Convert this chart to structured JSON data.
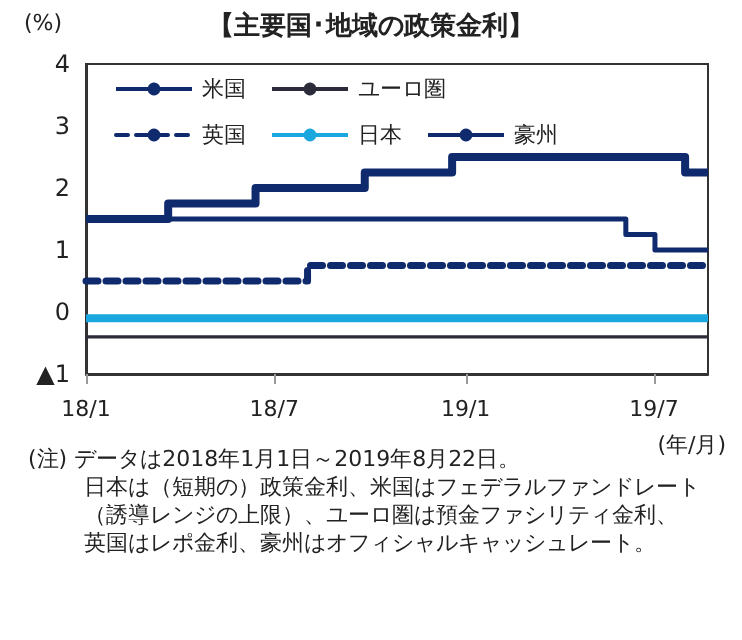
{
  "chart_data": {
    "type": "step",
    "title": "【主要国･地域の政策金利】",
    "ylabel": "(%)",
    "xlabel": "(年/月)",
    "xlim": [
      "2018-01-01",
      "2019-08-22"
    ],
    "xticks": [
      {
        "value": "2018-01-01",
        "label": "18/1"
      },
      {
        "value": "2018-07-01",
        "label": "18/7"
      },
      {
        "value": "2019-01-01",
        "label": "19/1"
      },
      {
        "value": "2019-07-01",
        "label": "19/7"
      }
    ],
    "ylim": [
      -1,
      4
    ],
    "yticks": [
      {
        "value": -1,
        "label": "▲1"
      },
      0,
      1,
      2,
      3,
      4
    ],
    "grid": false,
    "legend": "top left",
    "marker": "none",
    "series": [
      {
        "name": "米国",
        "color": "#102a6e",
        "x": [
          "2018-01-01",
          "2018-03-21",
          "2018-06-13",
          "2018-09-26",
          "2018-12-19",
          "2019-07-31",
          "2019-08-22"
        ],
        "values": [
          1.5,
          1.75,
          2,
          2.25,
          2.5,
          2.25,
          2.25
        ]
      },
      {
        "name": "ユーロ圏",
        "color": "#2b2b3a",
        "x": [
          "2018-01-01",
          "2019-08-22"
        ],
        "values": [
          -0.4,
          -0.4
        ]
      },
      {
        "name": "英国",
        "color": "#102a6e",
        "line_style": "dashed",
        "x": [
          "2018-01-01",
          "2018-08-02",
          "2019-08-22"
        ],
        "values": [
          0.5,
          0.75,
          0.75
        ]
      },
      {
        "name": "日本",
        "color": "#1aa7e0",
        "x": [
          "2018-01-01",
          "2019-08-22"
        ],
        "values": [
          -0.1,
          -0.1
        ]
      },
      {
        "name": "豪州",
        "color": "#102a6e",
        "x": [
          "2018-01-01",
          "2019-06-04",
          "2019-07-02",
          "2019-08-22"
        ],
        "values": [
          1.5,
          1.25,
          1,
          1
        ]
      }
    ],
    "annotations": [
      "(注) データは2018年1月1日～2019年8月22日。",
      "日本は（短期の）政策金利、米国はフェデラルファンドレート",
      "（誘導レンジの上限）、ユーロ圏は預金ファシリティ金利、",
      "英国はレポ金利、豪州はオフィシャルキャッシュレート。"
    ]
  }
}
